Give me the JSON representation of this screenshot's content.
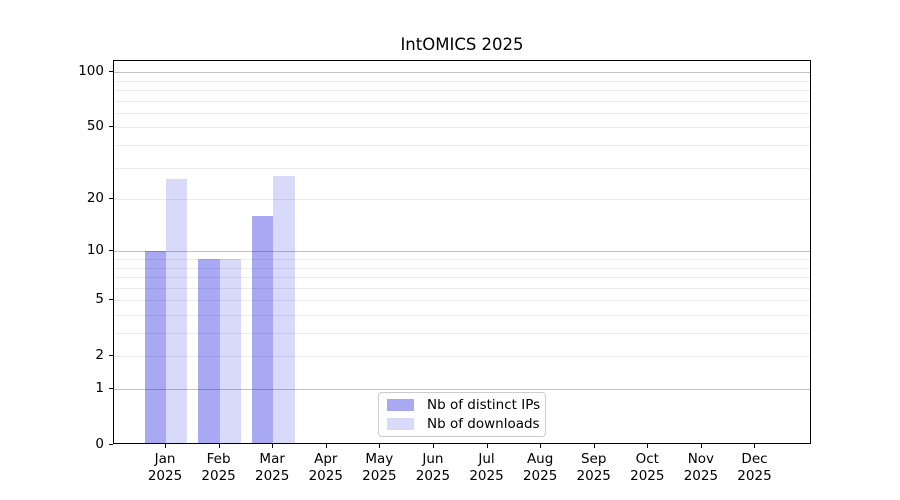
{
  "chart_data": {
    "type": "bar",
    "title": "IntOMICS 2025",
    "categories": [
      {
        "month": "Jan",
        "year": "2025"
      },
      {
        "month": "Feb",
        "year": "2025"
      },
      {
        "month": "Mar",
        "year": "2025"
      },
      {
        "month": "Apr",
        "year": "2025"
      },
      {
        "month": "May",
        "year": "2025"
      },
      {
        "month": "Jun",
        "year": "2025"
      },
      {
        "month": "Jul",
        "year": "2025"
      },
      {
        "month": "Aug",
        "year": "2025"
      },
      {
        "month": "Sep",
        "year": "2025"
      },
      {
        "month": "Oct",
        "year": "2025"
      },
      {
        "month": "Nov",
        "year": "2025"
      },
      {
        "month": "Dec",
        "year": "2025"
      }
    ],
    "series": [
      {
        "name": "Nb of distinct IPs",
        "swatch": "#a8a8f3",
        "fill": "rgba(0,0,220,0.34)",
        "values": [
          10,
          9,
          16,
          0,
          0,
          0,
          0,
          0,
          0,
          0,
          0,
          0
        ]
      },
      {
        "name": "Nb of downloads",
        "swatch": "#d9d9fa",
        "fill": "rgba(0,0,220,0.15)",
        "values": [
          26,
          9,
          27,
          0,
          0,
          0,
          0,
          0,
          0,
          0,
          0,
          0
        ]
      }
    ],
    "y_axis": {
      "scale": "log1p",
      "ylim": [
        0,
        115
      ],
      "ticks": [
        0,
        1,
        2,
        5,
        10,
        20,
        50,
        100
      ],
      "major_gridlines": [
        1,
        10,
        100
      ],
      "minor_gridlines": [
        2,
        3,
        4,
        5,
        6,
        7,
        8,
        9,
        20,
        30,
        40,
        50,
        60,
        70,
        80,
        90
      ]
    },
    "legend": {
      "position": "bottom-center"
    },
    "colors": {
      "spine": "#000000",
      "grid_major": "#c2c2c2",
      "grid_minor": "#ececec",
      "legend_border": "#cccccc"
    }
  }
}
